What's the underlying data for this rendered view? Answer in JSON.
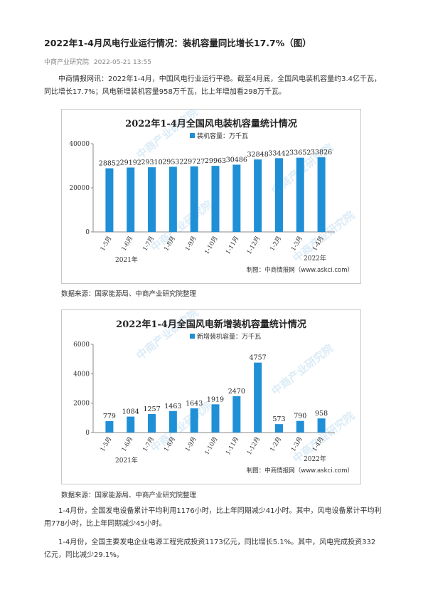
{
  "article": {
    "title": "2022年1-4月风电行业运行情况：装机容量同比增长17.7%（图）",
    "publisher": "中商产业研究院",
    "date": "2022-05-21 13:55",
    "intro": "中商情报网讯：2022年1-4月，中国风电行业运行平稳。截至4月底，全国风电装机容量约3.4亿千瓦，同比增长17.7%；风电新增装机容量958万千瓦，比上年增加看298万千瓦。",
    "para2": "1-4月份，全国发电设备累计平均利用1176小时，比上年同期减少41小时。其中，风电设备累计平均利用778小时，比上年同期减少45小时。",
    "para3": "1-4月份，全国主要发电企业电源工程完成投资1173亿元，同比增长5.1%。其中，风电完成投资332亿元，同比减少29.1%。",
    "source1": "数据来源：国家能源局、中商产业研究院整理",
    "source2": "数据来源：国家能源局、中商产业研究院整理"
  },
  "watermark_text": "中商产业研究院",
  "chart_data": [
    {
      "type": "bar",
      "title": "2022年1-4月全国风电装机容量统计情况",
      "categories": [
        "1-5月",
        "1-6月",
        "1-7月",
        "1-8月",
        "1-9月",
        "1-10月",
        "1-11月",
        "1-12月",
        "1-2月",
        "1-3月",
        "1-4月"
      ],
      "series": [
        {
          "name": "装机容量：万千瓦",
          "values": [
            28852,
            29192,
            29310,
            29532,
            29727,
            29963,
            30486,
            32848,
            33442,
            33652,
            33826
          ]
        }
      ],
      "ylim": [
        0,
        40000
      ],
      "yticks": [
        "0",
        "20000",
        "40000"
      ],
      "year_labels": [
        "2021年",
        "2022年"
      ],
      "credit": "制图：中商情报网（www.askci.com）",
      "bar_color": "#1f8fd6",
      "grid": false,
      "legend_position": "top"
    },
    {
      "type": "bar",
      "title": "2022年1-4月全国风电新增装机容量统计情况",
      "categories": [
        "1-5月",
        "1-6月",
        "1-7月",
        "1-8月",
        "1-9月",
        "1-10月",
        "1-11月",
        "1-12月",
        "1-2月",
        "1-3月",
        "1-4月"
      ],
      "series": [
        {
          "name": "新增装机容量：万千瓦",
          "values": [
            779,
            1084,
            1257,
            1463,
            1643,
            1919,
            2470,
            4757,
            573,
            790,
            958
          ]
        }
      ],
      "ylim": [
        0,
        6000
      ],
      "yticks": [
        "0",
        "2000",
        "4000",
        "6000"
      ],
      "year_labels": [
        "2021年",
        "2022年"
      ],
      "credit": "制图：中商情报网（www.askci.com）",
      "bar_color": "#1f8fd6",
      "grid": false,
      "legend_position": "top"
    }
  ]
}
